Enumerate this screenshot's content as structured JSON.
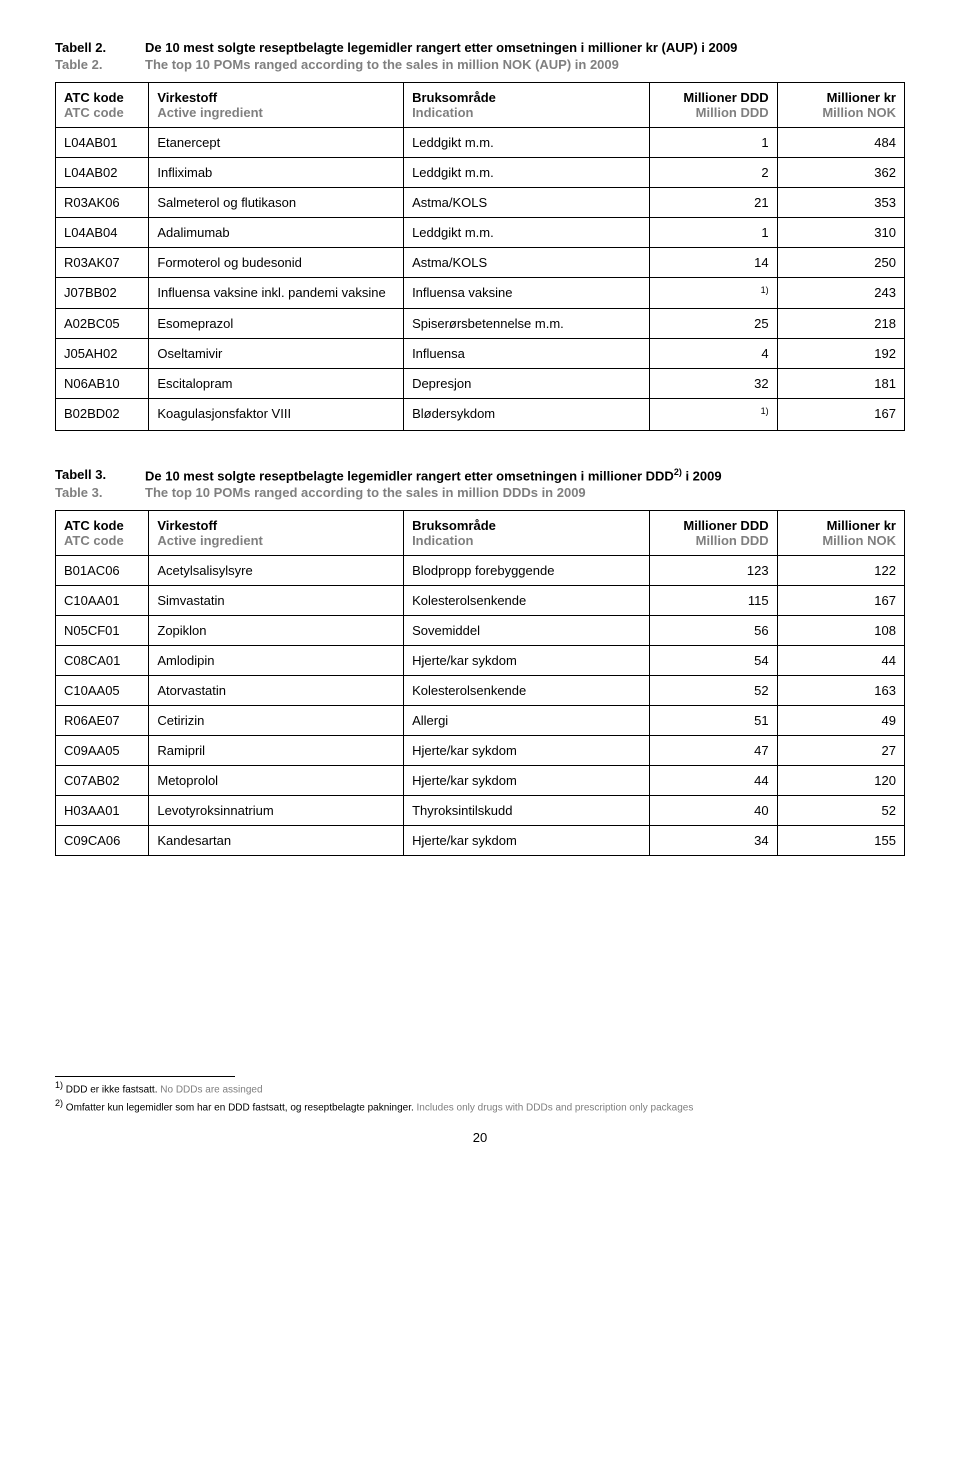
{
  "table2": {
    "lbl_no": "Tabell 2.",
    "title_no": "De 10 mest solgte reseptbelagte legemidler rangert etter omsetningen i millioner kr (AUP) i 2009",
    "lbl_en": "Table 2.",
    "title_en": "The top 10 POMs ranged according to the sales in million NOK (AUP) in 2009",
    "headers": {
      "c0_no": "ATC kode",
      "c0_en": "ATC code",
      "c1_no": "Virkestoff",
      "c1_en": "Active ingredient",
      "c2_no": "Bruksområde",
      "c2_en": "Indication",
      "c3_no": "Millioner DDD",
      "c3_en": "Million DDD",
      "c4_no": "Millioner kr",
      "c4_en": "Million NOK"
    },
    "rows": [
      {
        "c0": "L04AB01",
        "c1": "Etanercept",
        "c2": "Leddgikt m.m.",
        "c3": "1",
        "c4": "484"
      },
      {
        "c0": "L04AB02",
        "c1": "Infliximab",
        "c2": "Leddgikt m.m.",
        "c3": "2",
        "c4": "362"
      },
      {
        "c0": "R03AK06",
        "c1": "Salmeterol og flutikason",
        "c2": "Astma/KOLS",
        "c3": "21",
        "c4": "353"
      },
      {
        "c0": "L04AB04",
        "c1": "Adalimumab",
        "c2": "Leddgikt m.m.",
        "c3": "1",
        "c4": "310"
      },
      {
        "c0": "R03AK07",
        "c1": "Formoterol og budesonid",
        "c2": "Astma/KOLS",
        "c3": "14",
        "c4": "250"
      },
      {
        "c0": "J07BB02",
        "c1": "Influensa vaksine inkl. pandemi vaksine",
        "c2": "Influensa vaksine",
        "c3": "1)",
        "c3_sup": true,
        "c4": "243"
      },
      {
        "c0": "A02BC05",
        "c1": "Esomeprazol",
        "c2": "Spiserørsbetennelse m.m.",
        "c3": "25",
        "c4": "218"
      },
      {
        "c0": "J05AH02",
        "c1": "Oseltamivir",
        "c2": "Influensa",
        "c3": "4",
        "c4": "192"
      },
      {
        "c0": "N06AB10",
        "c1": "Escitalopram",
        "c2": "Depresjon",
        "c3": "32",
        "c4": "181"
      },
      {
        "c0": "B02BD02",
        "c1": "Koagulasjonsfaktor VIII",
        "c2": "Blødersykdom",
        "c3": "1)",
        "c3_sup": true,
        "c4": "167"
      }
    ]
  },
  "table3": {
    "lbl_no": "Tabell 3.",
    "title_no_pre": "De 10 mest solgte reseptbelagte legemidler rangert etter omsetningen i millioner DDD",
    "title_no_sup": "2)",
    "title_no_post": " i 2009",
    "lbl_en": "Table 3.",
    "title_en": "The top 10 POMs ranged according to the sales in million DDDs in 2009",
    "headers": {
      "c0_no": "ATC kode",
      "c0_en": "ATC code",
      "c1_no": "Virkestoff",
      "c1_en": "Active ingredient",
      "c2_no": "Bruksområde",
      "c2_en": "Indication",
      "c3_no": "Millioner DDD",
      "c3_en": "Million DDD",
      "c4_no": "Millioner kr",
      "c4_en": "Million NOK"
    },
    "rows": [
      {
        "c0": "B01AC06",
        "c1": "Acetylsalisylsyre",
        "c2": "Blodpropp forebyggende",
        "c3": "123",
        "c4": "122"
      },
      {
        "c0": "C10AA01",
        "c1": "Simvastatin",
        "c2": "Kolesterolsenkende",
        "c3": "115",
        "c4": "167"
      },
      {
        "c0": "N05CF01",
        "c1": "Zopiklon",
        "c2": "Sovemiddel",
        "c3": "56",
        "c4": "108"
      },
      {
        "c0": "C08CA01",
        "c1": "Amlodipin",
        "c2": "Hjerte/kar sykdom",
        "c3": "54",
        "c4": "44"
      },
      {
        "c0": "C10AA05",
        "c1": "Atorvastatin",
        "c2": "Kolesterolsenkende",
        "c3": "52",
        "c4": "163"
      },
      {
        "c0": "R06AE07",
        "c1": "Cetirizin",
        "c2": "Allergi",
        "c3": "51",
        "c4": "49"
      },
      {
        "c0": "C09AA05",
        "c1": "Ramipril",
        "c2": "Hjerte/kar sykdom",
        "c3": "47",
        "c4": "27"
      },
      {
        "c0": "C07AB02",
        "c1": "Metoprolol",
        "c2": "Hjerte/kar sykdom",
        "c3": "44",
        "c4": "120"
      },
      {
        "c0": "H03AA01",
        "c1": "Levotyroksinnatrium",
        "c2": "Thyroksintilskudd",
        "c3": "40",
        "c4": "52"
      },
      {
        "c0": "C09CA06",
        "c1": "Kandesartan",
        "c2": "Hjerte/kar sykdom",
        "c3": "34",
        "c4": "155"
      }
    ]
  },
  "footnotes": {
    "f1_sup": "1)",
    "f1_no": " DDD er ikke fastsatt.",
    "f1_en": " No DDDs are assinged",
    "f2_sup": "2)",
    "f2_no": " Omfatter kun legemidler som har en DDD fastsatt, og reseptbelagte pakninger.",
    "f2_en": " Includes only drugs with DDDs and prescription only packages"
  },
  "page_number": "20"
}
